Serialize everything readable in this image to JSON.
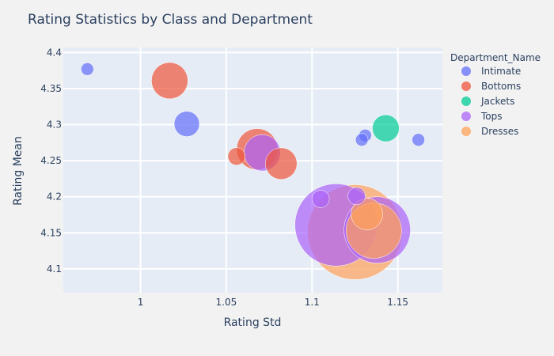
{
  "chart_data": {
    "type": "scatter",
    "title": "Rating Statistics by Class and Department",
    "xlabel": "Rating Std",
    "ylabel": "Rating Mean",
    "xlim": [
      0.955,
      1.176
    ],
    "ylim": [
      4.067,
      4.407
    ],
    "xticks": [
      1,
      1.05,
      1.1,
      1.15
    ],
    "xtick_labels": [
      "1",
      "1.05",
      "1.1",
      "1.15"
    ],
    "yticks": [
      4.1,
      4.15,
      4.2,
      4.25,
      4.3,
      4.35,
      4.4
    ],
    "ytick_labels": [
      "4.1",
      "4.15",
      "4.2",
      "4.25",
      "4.3",
      "4.35",
      "4.4"
    ],
    "grid": true,
    "legend_title": "Department_Name",
    "legend_position": "right",
    "size_encoding": "bubble area",
    "series": [
      {
        "name": "Intimate",
        "color": "#636efa",
        "points": [
          {
            "x": 0.969,
            "y": 4.377,
            "size": 8
          },
          {
            "x": 1.027,
            "y": 4.301,
            "size": 16
          },
          {
            "x": 1.131,
            "y": 4.285,
            "size": 8
          },
          {
            "x": 1.129,
            "y": 4.279,
            "size": 8
          },
          {
            "x": 1.162,
            "y": 4.279,
            "size": 8
          }
        ]
      },
      {
        "name": "Bottoms",
        "color": "#EF553B",
        "points": [
          {
            "x": 1.017,
            "y": 4.361,
            "size": 23
          },
          {
            "x": 1.056,
            "y": 4.256,
            "size": 11
          },
          {
            "x": 1.068,
            "y": 4.266,
            "size": 26
          },
          {
            "x": 1.082,
            "y": 4.246,
            "size": 20
          }
        ]
      },
      {
        "name": "Jackets",
        "color": "#00cc96",
        "points": [
          {
            "x": 1.143,
            "y": 4.295,
            "size": 17
          }
        ]
      },
      {
        "name": "Tops",
        "color": "#ab63fa",
        "points": [
          {
            "x": 1.071,
            "y": 4.261,
            "size": 23
          },
          {
            "x": 1.105,
            "y": 4.197,
            "size": 11
          },
          {
            "x": 1.114,
            "y": 4.161,
            "size": 52
          },
          {
            "x": 1.126,
            "y": 4.201,
            "size": 11
          },
          {
            "x": 1.138,
            "y": 4.154,
            "size": 42
          }
        ]
      },
      {
        "name": "Dresses",
        "color": "#FFA15A",
        "points": [
          {
            "x": 1.125,
            "y": 4.151,
            "size": 60
          },
          {
            "x": 1.132,
            "y": 4.176,
            "size": 20
          },
          {
            "x": 1.136,
            "y": 4.153,
            "size": 35
          }
        ]
      }
    ]
  }
}
